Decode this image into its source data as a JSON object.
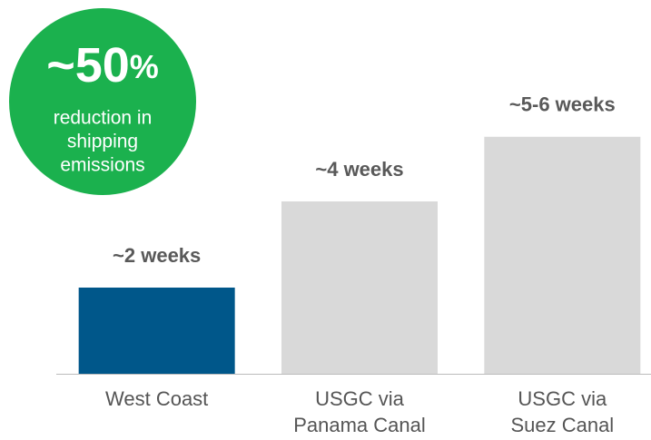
{
  "chart_data": {
    "type": "bar",
    "categories": [
      [
        "West Coast"
      ],
      [
        "USGC via",
        "Panama Canal"
      ],
      [
        "USGC via",
        "Suez Canal"
      ]
    ],
    "values": [
      2,
      4,
      5.5
    ],
    "value_labels": [
      "~2 weeks",
      "~4 weeks",
      "~5-6 weeks"
    ],
    "colors": [
      "#00578a",
      "#d9d9d9",
      "#d9d9d9"
    ],
    "ylim": [
      0,
      6
    ],
    "annotation": {
      "figure": "~50",
      "unit": "%",
      "color": "#1bb14e",
      "lines": [
        "reduction in",
        "shipping",
        "emissions"
      ]
    }
  }
}
